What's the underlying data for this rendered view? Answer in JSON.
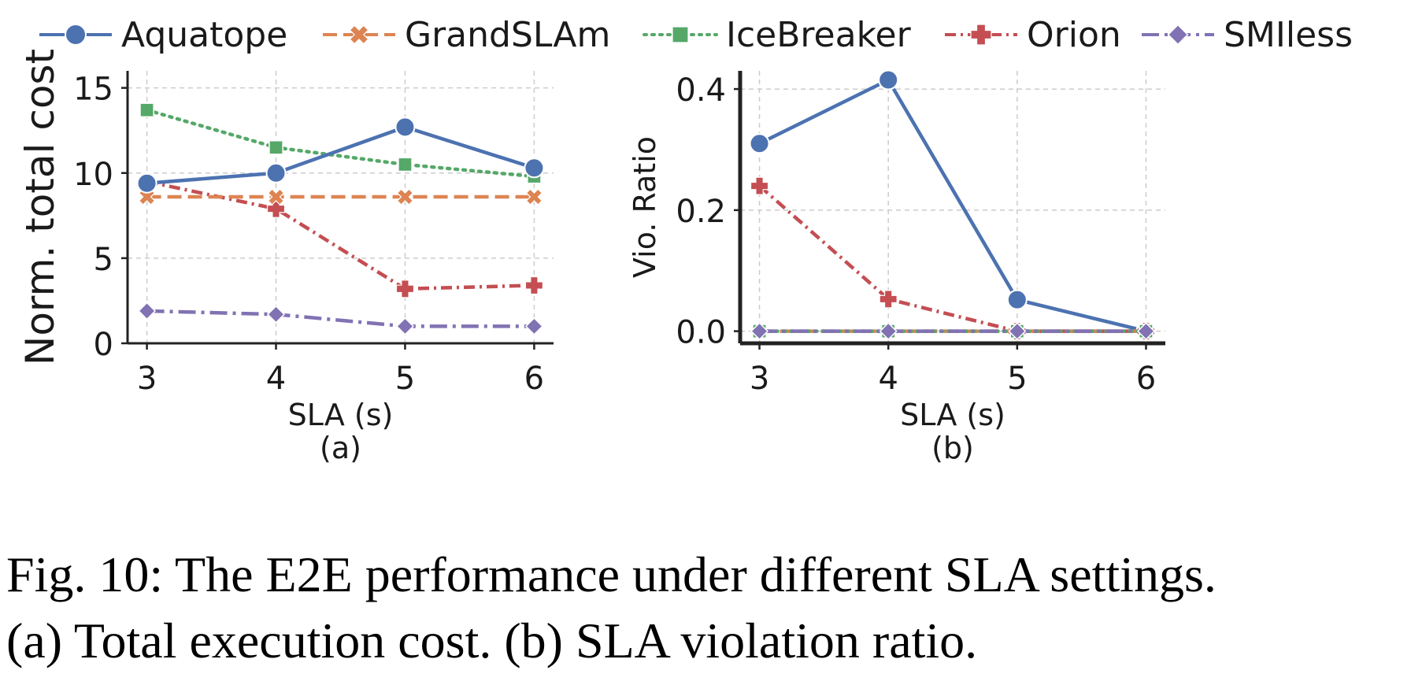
{
  "legend": [
    {
      "name": "Aquatope",
      "color": "#4c72b0",
      "marker": "circle",
      "dash": "solid"
    },
    {
      "name": "GrandSLAm",
      "color": "#dd8452",
      "marker": "x",
      "dash": "dashed"
    },
    {
      "name": "IceBreaker",
      "color": "#55a868",
      "marker": "square",
      "dash": "dotted"
    },
    {
      "name": "Orion",
      "color": "#c44e52",
      "marker": "plus",
      "dash": "dashdot"
    },
    {
      "name": "SMIless",
      "color": "#8172b3",
      "marker": "diamond",
      "dash": "longdashdot"
    }
  ],
  "chart_data": [
    {
      "type": "line",
      "panel_label": "(a)",
      "xlabel": "SLA (s)",
      "ylabel": "Norm. total cost",
      "x": [
        3,
        4,
        5,
        6
      ],
      "xlim": [
        2.85,
        6.15
      ],
      "ylim": [
        0,
        16
      ],
      "yticks": [
        0,
        5,
        10,
        15
      ],
      "ytick_labels": [
        "0",
        "5",
        "10",
        "15"
      ],
      "xtick_labels": [
        "3",
        "4",
        "5",
        "6"
      ],
      "grid": true,
      "series": [
        {
          "name": "Aquatope",
          "values": [
            9.4,
            10.0,
            12.7,
            10.3
          ]
        },
        {
          "name": "GrandSLAm",
          "values": [
            8.6,
            8.6,
            8.6,
            8.6
          ]
        },
        {
          "name": "IceBreaker",
          "values": [
            13.7,
            11.5,
            10.5,
            9.8
          ]
        },
        {
          "name": "Orion",
          "values": [
            9.5,
            7.9,
            3.2,
            3.4
          ]
        },
        {
          "name": "SMIless",
          "values": [
            1.9,
            1.7,
            1.0,
            1.0
          ]
        }
      ]
    },
    {
      "type": "line",
      "panel_label": "(b)",
      "xlabel": "SLA (s)",
      "ylabel": "Vio. Ratio",
      "x": [
        3,
        4,
        5,
        6
      ],
      "xlim": [
        2.85,
        6.15
      ],
      "ylim": [
        -0.02,
        0.43
      ],
      "yticks": [
        0.0,
        0.2,
        0.4
      ],
      "ytick_labels": [
        "0.0",
        "0.2",
        "0.4"
      ],
      "xtick_labels": [
        "3",
        "4",
        "5",
        "6"
      ],
      "grid": true,
      "series": [
        {
          "name": "Aquatope",
          "values": [
            0.31,
            0.415,
            0.052,
            0.0
          ]
        },
        {
          "name": "GrandSLAm",
          "values": [
            0.0,
            0.0,
            0.0,
            0.0
          ]
        },
        {
          "name": "IceBreaker",
          "values": [
            0.0,
            0.0,
            0.0,
            0.0
          ]
        },
        {
          "name": "Orion",
          "values": [
            0.24,
            0.053,
            0.0,
            0.0
          ]
        },
        {
          "name": "SMIless",
          "values": [
            0.0,
            0.0,
            0.0,
            0.0
          ]
        }
      ]
    }
  ],
  "caption": {
    "line1": "Fig. 10: The E2E performance under different SLA settings.",
    "line2": "(a) Total execution cost. (b) SLA violation ratio."
  }
}
